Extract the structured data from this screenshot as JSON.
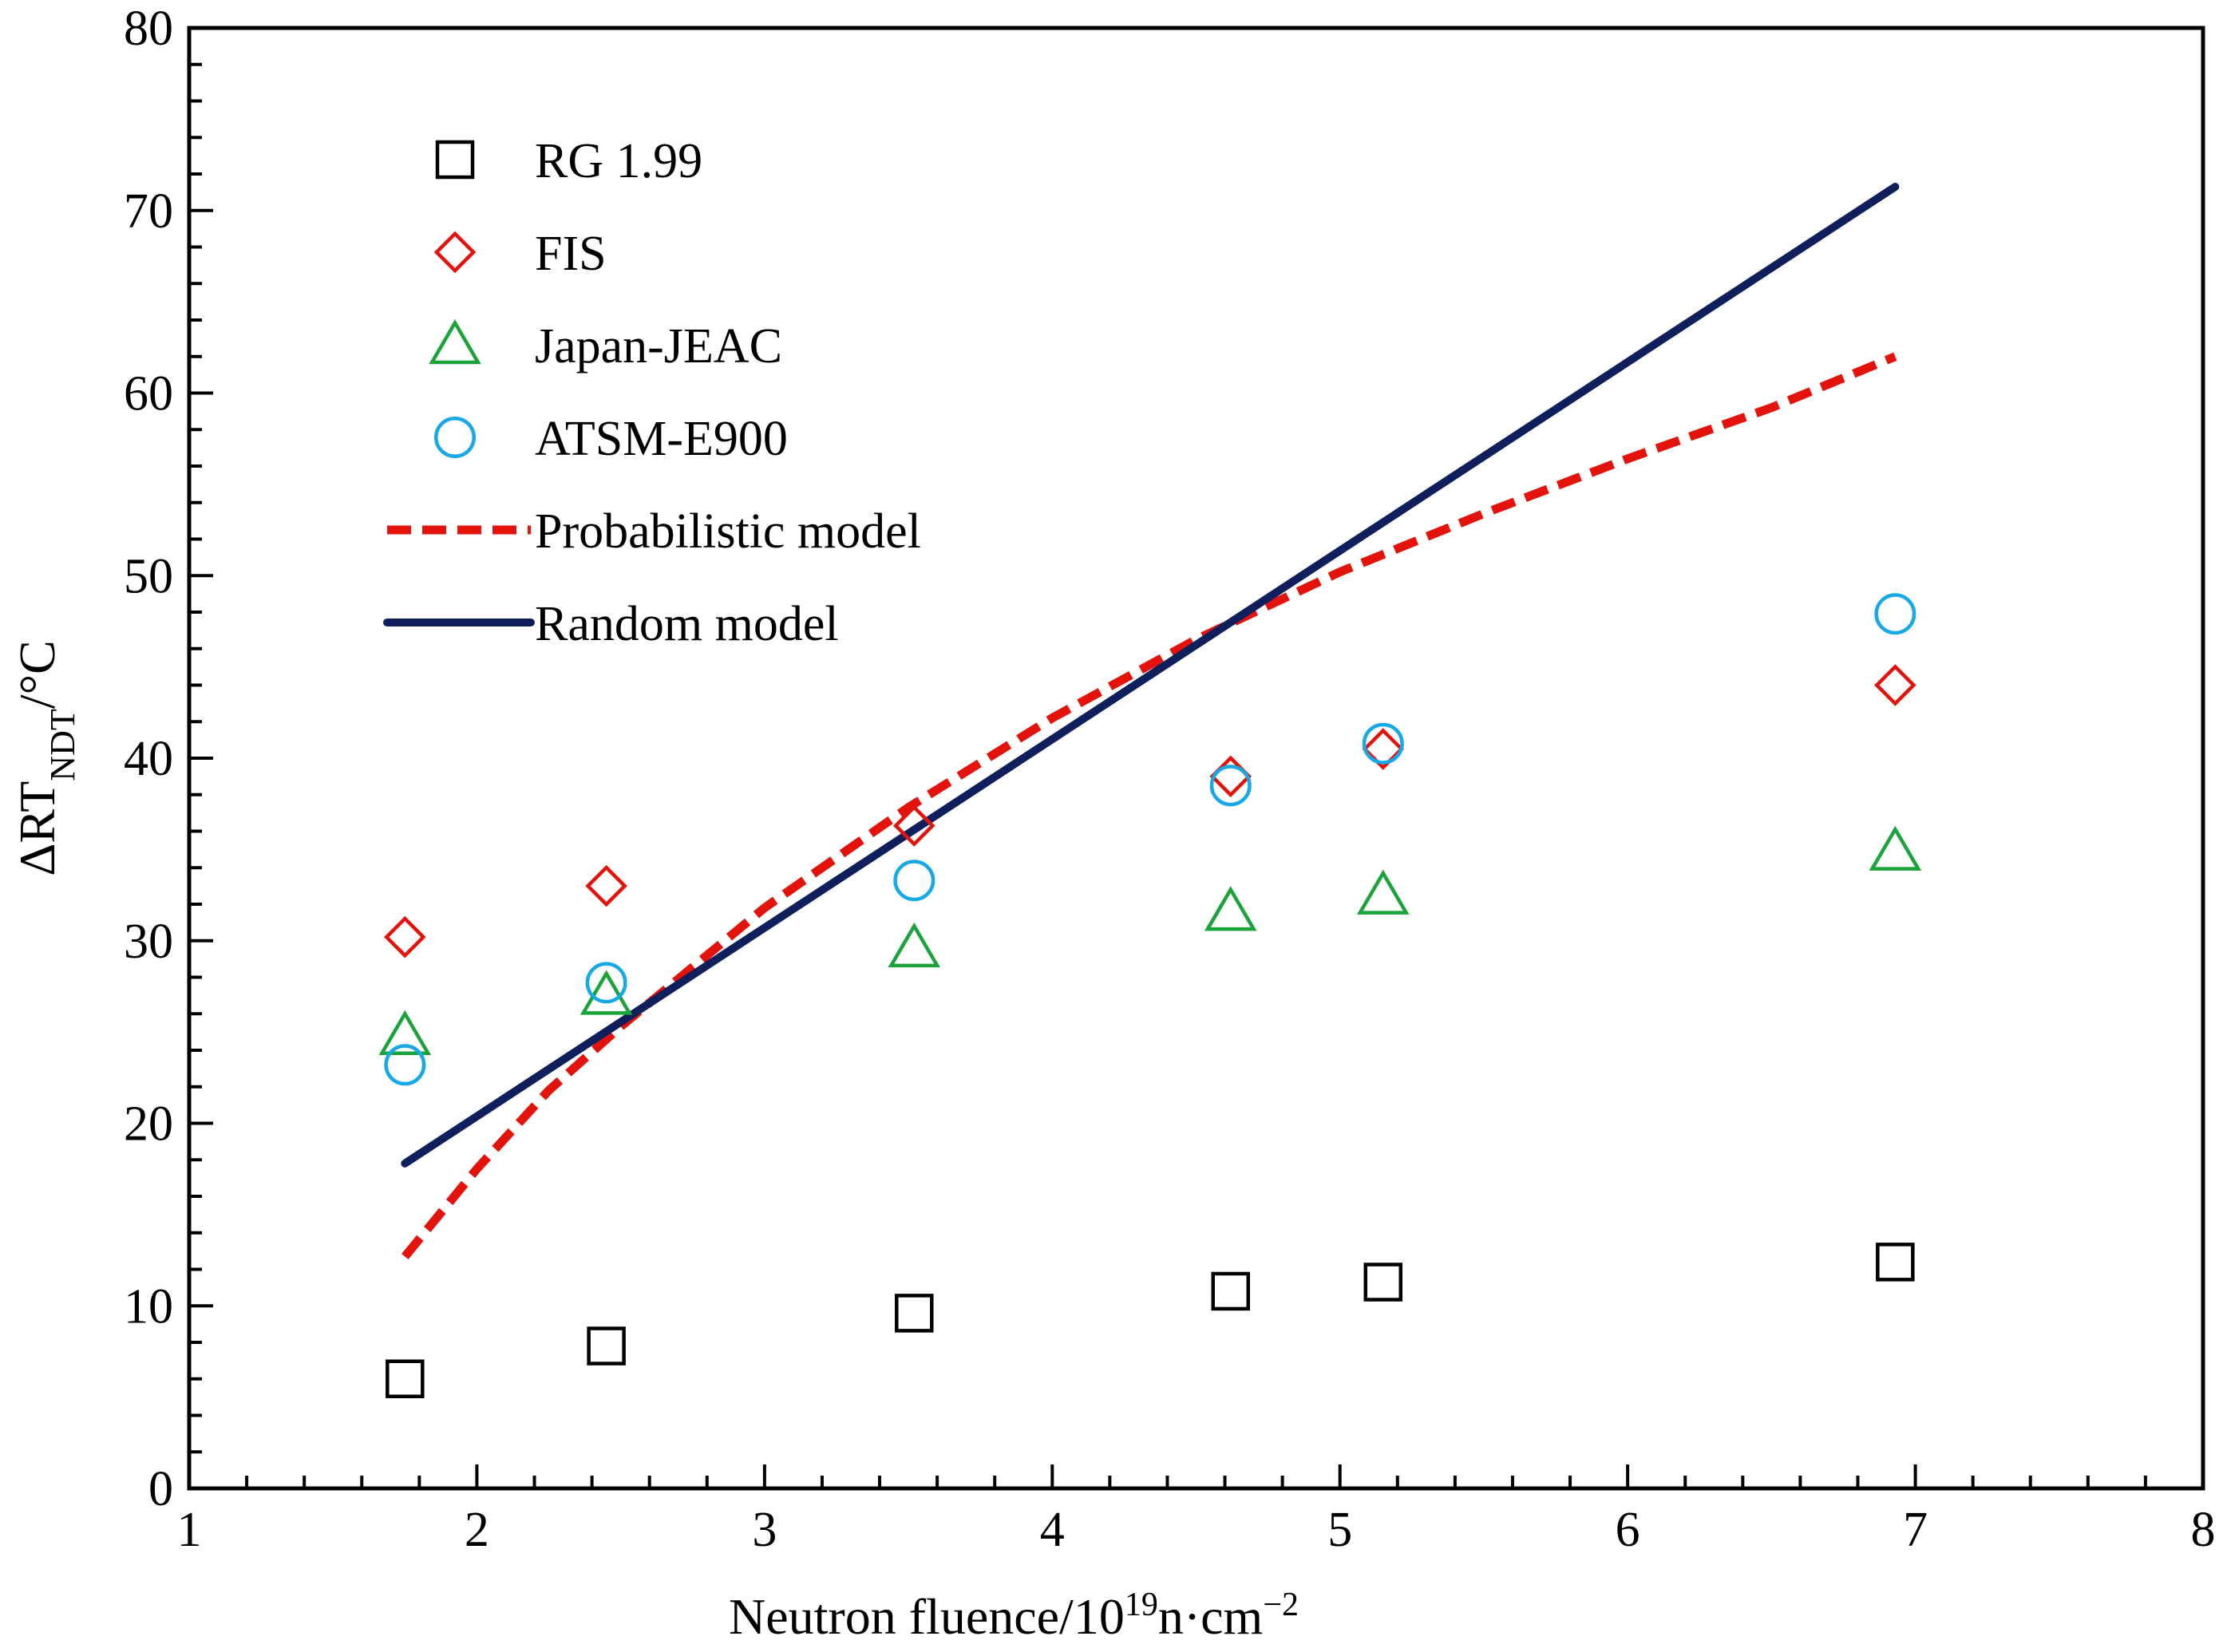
{
  "chart_data": {
    "type": "scatter",
    "title": "",
    "xlabel": {
      "main": "Neutron fluence/10",
      "sup": "19",
      "tail": "n·cm",
      "tail_sup": "−2"
    },
    "ylabel": {
      "main": "ΔRT",
      "sub": "NDT",
      "tail": "/°C"
    },
    "xlim": [
      1,
      8
    ],
    "ylim": [
      0,
      80
    ],
    "x_ticks": [
      "1",
      "2",
      "3",
      "4",
      "5",
      "6",
      "7",
      "8"
    ],
    "y_ticks": [
      "0",
      "10",
      "20",
      "30",
      "40",
      "50",
      "60",
      "70",
      "80"
    ],
    "x_minor_step": 0.2,
    "y_minor_step": 2,
    "legend_position": "top-left",
    "x": [
      1.75,
      2.45,
      3.52,
      4.62,
      5.15,
      6.93
    ],
    "series": [
      {
        "name": "RG 1.99",
        "marker": "square",
        "color": "#000000",
        "values": [
          6.0,
          7.8,
          9.6,
          10.8,
          11.3,
          12.4
        ]
      },
      {
        "name": "FIS",
        "marker": "diamond",
        "color": "#e3120b",
        "values": [
          30.2,
          33.0,
          36.3,
          39.0,
          40.5,
          44.0
        ]
      },
      {
        "name": "Japan-JEAC",
        "marker": "triangle",
        "color": "#1aa33a",
        "values": [
          24.8,
          27.0,
          29.6,
          31.6,
          32.5,
          34.9
        ]
      },
      {
        "name": "ATSM-E900",
        "marker": "circle",
        "color": "#16a9e6",
        "values": [
          23.2,
          27.7,
          33.3,
          38.5,
          40.8,
          47.9
        ]
      }
    ],
    "lines": [
      {
        "name": "Probabilistic model",
        "style": "dashed",
        "color": "#e3120b",
        "x": [
          1.75,
          2.0,
          2.25,
          2.5,
          3.0,
          3.5,
          4.0,
          4.5,
          5.0,
          5.5,
          6.0,
          6.5,
          6.93
        ],
        "values": [
          12.7,
          17.5,
          21.8,
          25.3,
          31.8,
          37.3,
          42.2,
          46.5,
          50.2,
          53.4,
          56.4,
          59.2,
          62.0
        ]
      },
      {
        "name": "Random model",
        "style": "solid",
        "color": "#0f1f5c",
        "x": [
          1.75,
          6.93
        ],
        "values": [
          17.8,
          71.3
        ]
      }
    ]
  }
}
